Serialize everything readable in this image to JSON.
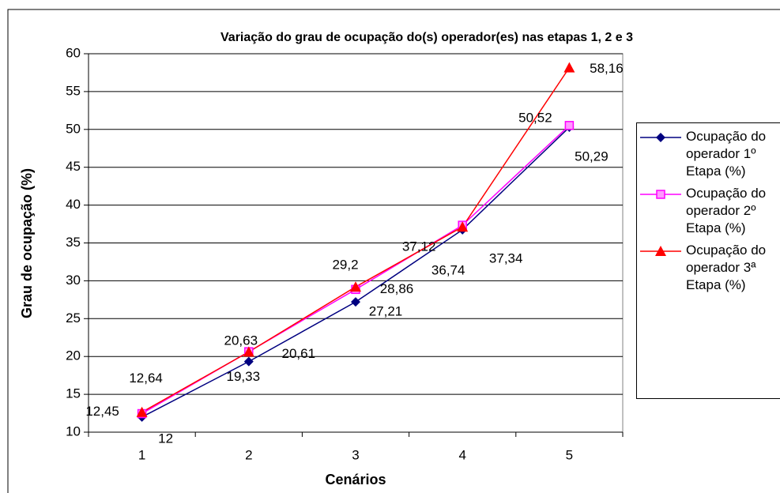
{
  "chart_data": {
    "type": "line",
    "title": "Variação do grau de ocupação do(s) operador(es) nas etapas 1, 2 e 3",
    "x_label": "Cenários",
    "y_label": "Grau de ocupação (%)",
    "categories": [
      "1",
      "2",
      "3",
      "4",
      "5"
    ],
    "ylim": [
      10,
      60
    ],
    "yticks": [
      10,
      15,
      20,
      25,
      30,
      35,
      40,
      45,
      50,
      55,
      60
    ],
    "grid": true,
    "legend": "right",
    "series": [
      {
        "name": "Ocupação do operador 1º Etapa (%)",
        "color": "#000080",
        "marker": "diamond",
        "values": [
          12,
          19.33,
          27.21,
          36.74,
          50.29
        ],
        "value_labels": [
          "12",
          "19,33",
          "27,21",
          "36,74",
          "50,29"
        ]
      },
      {
        "name": "Ocupação do operador 2º Etapa (%)",
        "color": "#ff00ff",
        "marker": "square",
        "values": [
          12.45,
          20.63,
          28.86,
          37.34,
          50.52
        ],
        "value_labels": [
          "12,45",
          "20,63",
          "28,86",
          "37,34",
          "50,52"
        ]
      },
      {
        "name": "Ocupação do operador 3ª Etapa (%)",
        "color": "#ff0000",
        "marker": "triangle",
        "values": [
          12.64,
          20.61,
          29.2,
          37.12,
          58.16
        ],
        "value_labels": [
          "12,64",
          "20,61",
          "29,2",
          "37,12",
          "58,16"
        ]
      }
    ]
  }
}
